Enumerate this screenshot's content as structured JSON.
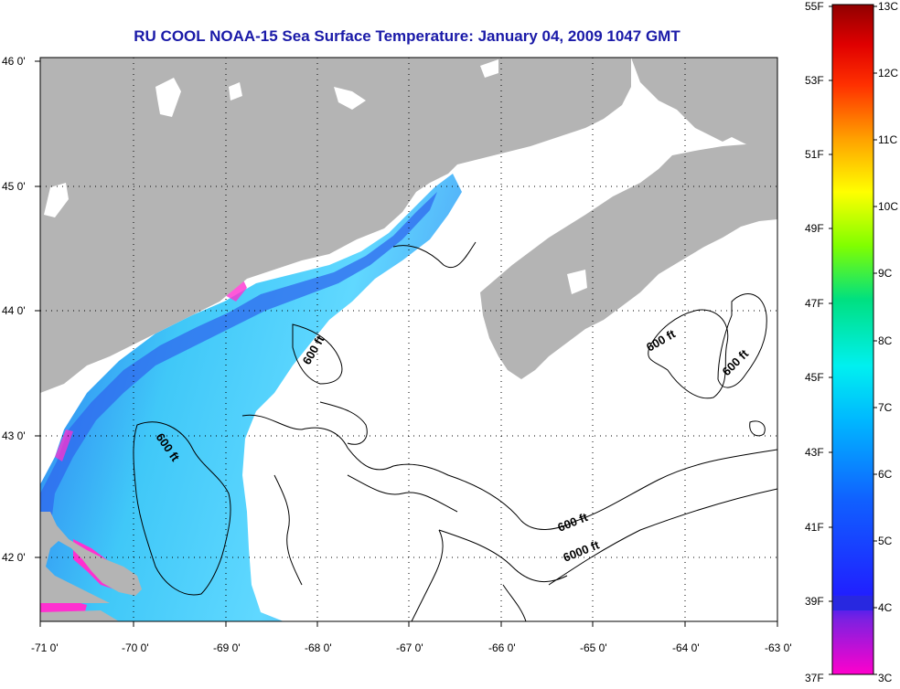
{
  "title": "RU COOL  NOAA-15  Sea Surface Temperature:  January 04, 2009 1047 GMT",
  "lat_ticks": [
    "46 0'",
    "45 0'",
    "44 0'",
    "43 0'",
    "42 0'"
  ],
  "lon_ticks": [
    "-71 0'",
    "-70 0'",
    "-69 0'",
    "-68 0'",
    "-67 0'",
    "-66 0'",
    "-65 0'",
    "-64 0'",
    "-63 0'"
  ],
  "contours": {
    "c1": "600 ft",
    "c2": "600 ft",
    "c3": "600 ft",
    "c4": "600 ft",
    "c5": "600 ft",
    "c6": "6000 ft"
  },
  "colorbar": {
    "fahrenheit": [
      "55F",
      "53F",
      "51F",
      "49F",
      "47F",
      "45F",
      "43F",
      "41F",
      "39F",
      "37F"
    ],
    "celsius": [
      "13C",
      "12C",
      "11C",
      "10C",
      "9C",
      "8C",
      "7C",
      "6C",
      "5C",
      "4C",
      "3C"
    ]
  },
  "colors": {
    "land": "#b4b4b4",
    "title": "#1a1aa8",
    "ocean_no_data": "#ffffff"
  }
}
